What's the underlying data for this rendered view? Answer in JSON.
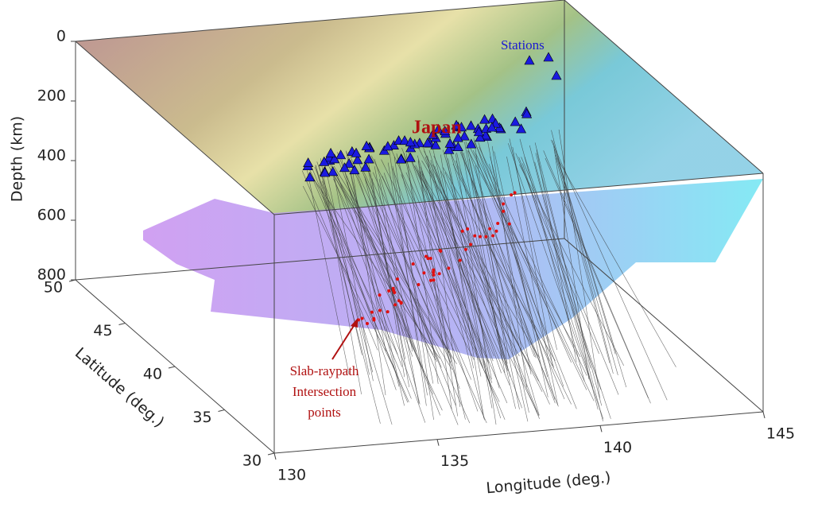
{
  "chart_data": {
    "type": "scatter3d",
    "x_label": "Longitude (deg.)",
    "y_label": "Latitude (deg.)",
    "z_label": "Depth (km)",
    "xlim": [
      130,
      145
    ],
    "xticks": [
      130,
      135,
      140,
      145
    ],
    "ylim": [
      30,
      50
    ],
    "yticks": [
      30,
      35,
      40,
      45,
      50
    ],
    "zlim": [
      0,
      800
    ],
    "zticks": [
      0,
      200,
      400,
      600,
      800
    ],
    "annotations": {
      "stations": "Stations",
      "region": "Japan",
      "intersections": [
        "Slab-raypath",
        "Intersection",
        "points"
      ]
    }
  }
}
